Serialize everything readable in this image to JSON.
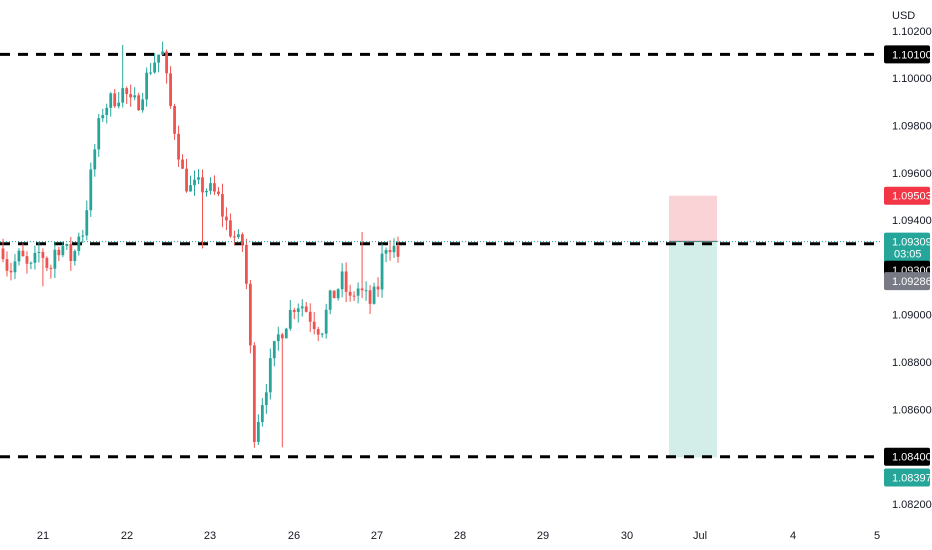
{
  "currency_label": "USD",
  "colors": {
    "up": "#26a69a",
    "down": "#ef5350",
    "level_line": "#000000",
    "stop_zone": "#f9d3d6",
    "target_zone": "#d3eee9",
    "price_badge": "#26a69a",
    "bid_badge": "#787b86",
    "level_badge": "#000000",
    "stop_badge": "#f23645",
    "target_badge": "#26a69a"
  },
  "price_scale": {
    "labels": [
      "1.10200",
      "1.10000",
      "1.09800",
      "1.09600",
      "1.09400",
      "1.09000",
      "1.08800",
      "1.08600",
      "1.08200"
    ]
  },
  "time_axis": {
    "labels": [
      "21",
      "22",
      "23",
      "26",
      "27",
      "28",
      "29",
      "30",
      "Jul",
      "4",
      "5"
    ]
  },
  "badges": {
    "level_top": "1.10100",
    "stop": "1.09503",
    "last_price": "1.09309",
    "countdown": "03:05",
    "level_mid": "1.09300",
    "bid": "1.09286",
    "level_bottom": "1.08400",
    "target": "1.08397"
  },
  "chart_data": {
    "type": "candlestick",
    "x_axis_labels": [
      "21",
      "22",
      "23",
      "26",
      "27",
      "28",
      "29",
      "30",
      "Jul",
      "4",
      "5"
    ],
    "ylim": [
      1.0812,
      1.1033
    ],
    "horizontal_levels": [
      1.101,
      1.093,
      1.084
    ],
    "last_price": 1.09309,
    "position": {
      "entry": 1.0931,
      "stop": 1.09503,
      "target": 1.08397
    },
    "ohlc_segments": [
      {
        "trend": [
          1.0928,
          1.0918,
          1.0922,
          1.0925,
          1.092,
          1.0919,
          1.0926,
          1.0925,
          1.0918,
          1.0928,
          1.093,
          1.0926,
          1.0923,
          1.0935
        ],
        "extreme_low": 1.0912
      },
      {
        "trend": [
          1.0935,
          1.0955,
          1.0975,
          1.0988,
          1.099,
          1.0993,
          1.0995,
          1.0988,
          1.099,
          1.0998,
          1.1006,
          1.101
        ],
        "extreme_high": 1.1014
      },
      {
        "trend": [
          1.101,
          1.099,
          1.0975,
          1.0958,
          1.0953,
          1.0954,
          1.0954,
          1.0952,
          1.095,
          1.094,
          1.0935,
          1.093
        ],
        "extreme_low": 1.0928
      },
      {
        "trend": [
          1.093,
          1.0905,
          1.085,
          1.086,
          1.087,
          1.088,
          1.089,
          1.0895,
          1.09,
          1.0905,
          1.0905,
          1.0902,
          1.0898,
          1.0895
        ],
        "extreme_low": 1.0844
      },
      {
        "trend": [
          1.0895,
          1.0905,
          1.091,
          1.0915,
          1.0905,
          1.0912,
          1.0908,
          1.0905,
          1.091,
          1.093,
          1.093,
          1.0925
        ],
        "extreme_high": 1.0935
      }
    ]
  }
}
